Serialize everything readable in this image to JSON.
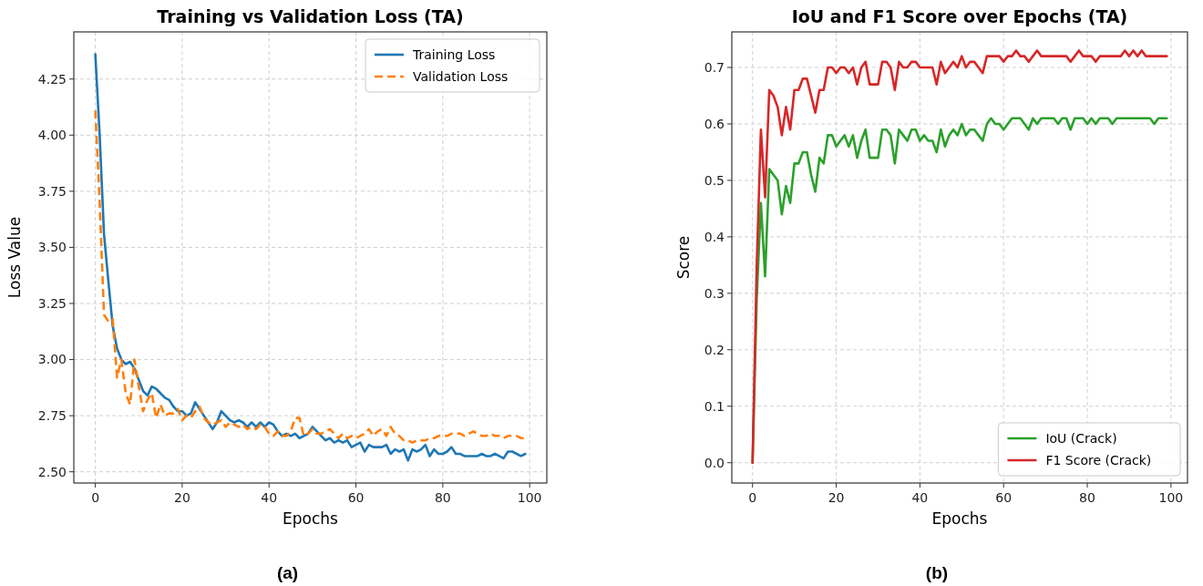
{
  "chart_data": [
    {
      "type": "line",
      "title": "Training vs Validation Loss (TA)",
      "xlabel": "Epochs",
      "ylabel": "Loss Value",
      "x": [
        0,
        1,
        2,
        3,
        4,
        5,
        6,
        7,
        8,
        9,
        10,
        11,
        12,
        13,
        14,
        15,
        16,
        17,
        18,
        19,
        20,
        21,
        22,
        23,
        24,
        25,
        26,
        27,
        28,
        29,
        30,
        31,
        32,
        33,
        34,
        35,
        36,
        37,
        38,
        39,
        40,
        41,
        42,
        43,
        44,
        45,
        46,
        47,
        48,
        49,
        50,
        51,
        52,
        53,
        54,
        55,
        56,
        57,
        58,
        59,
        60,
        61,
        62,
        63,
        64,
        65,
        66,
        67,
        68,
        69,
        70,
        71,
        72,
        73,
        74,
        75,
        76,
        77,
        78,
        79,
        80,
        81,
        82,
        83,
        84,
        85,
        86,
        87,
        88,
        89,
        90,
        91,
        92,
        93,
        94,
        95,
        96,
        97,
        98,
        99
      ],
      "series": [
        {
          "name": "Training Loss",
          "color": "#1f77b4",
          "line_style": "solid",
          "values": [
            4.36,
            4.0,
            3.56,
            3.35,
            3.15,
            3.05,
            3.0,
            2.98,
            2.99,
            2.96,
            2.91,
            2.86,
            2.84,
            2.88,
            2.87,
            2.85,
            2.83,
            2.82,
            2.79,
            2.77,
            2.77,
            2.75,
            2.76,
            2.81,
            2.78,
            2.75,
            2.72,
            2.69,
            2.72,
            2.77,
            2.75,
            2.73,
            2.72,
            2.73,
            2.72,
            2.7,
            2.72,
            2.7,
            2.72,
            2.7,
            2.72,
            2.71,
            2.68,
            2.66,
            2.67,
            2.66,
            2.67,
            2.65,
            2.66,
            2.67,
            2.7,
            2.68,
            2.66,
            2.64,
            2.65,
            2.63,
            2.64,
            2.63,
            2.64,
            2.61,
            2.62,
            2.63,
            2.59,
            2.62,
            2.61,
            2.61,
            2.61,
            2.62,
            2.58,
            2.6,
            2.59,
            2.6,
            2.55,
            2.6,
            2.59,
            2.6,
            2.62,
            2.57,
            2.6,
            2.58,
            2.58,
            2.59,
            2.61,
            2.58,
            2.58,
            2.57,
            2.57,
            2.57,
            2.57,
            2.58,
            2.57,
            2.57,
            2.58,
            2.57,
            2.56,
            2.59,
            2.59,
            2.58,
            2.57,
            2.58
          ]
        },
        {
          "name": "Validation Loss",
          "color": "#ff7f0e",
          "line_style": "dashed",
          "values": [
            4.11,
            3.7,
            3.2,
            3.17,
            3.18,
            2.92,
            3.0,
            2.85,
            2.8,
            3.0,
            2.88,
            2.77,
            2.82,
            2.85,
            2.74,
            2.8,
            2.75,
            2.76,
            2.76,
            2.78,
            2.73,
            2.75,
            2.74,
            2.77,
            2.79,
            2.74,
            2.72,
            2.71,
            2.72,
            2.73,
            2.7,
            2.72,
            2.71,
            2.7,
            2.71,
            2.69,
            2.7,
            2.69,
            2.71,
            2.7,
            2.67,
            2.66,
            2.68,
            2.66,
            2.66,
            2.68,
            2.74,
            2.74,
            2.66,
            2.67,
            2.69,
            2.67,
            2.67,
            2.68,
            2.69,
            2.67,
            2.65,
            2.67,
            2.65,
            2.66,
            2.65,
            2.66,
            2.67,
            2.69,
            2.66,
            2.68,
            2.69,
            2.66,
            2.7,
            2.67,
            2.66,
            2.64,
            2.64,
            2.63,
            2.64,
            2.64,
            2.64,
            2.65,
            2.65,
            2.66,
            2.66,
            2.66,
            2.67,
            2.67,
            2.67,
            2.66,
            2.67,
            2.68,
            2.67,
            2.66,
            2.66,
            2.67,
            2.66,
            2.66,
            2.65,
            2.66,
            2.66,
            2.66,
            2.65,
            2.65
          ]
        }
      ],
      "xlim": [
        -4.95,
        103.95
      ],
      "xticks": [
        0,
        20,
        40,
        60,
        80,
        100
      ],
      "ylim": [
        2.45,
        4.46
      ],
      "yticks": [
        {
          "value": 2.5,
          "label": "2.50"
        },
        {
          "value": 2.75,
          "label": "2.75"
        },
        {
          "value": 3.0,
          "label": "3.00"
        },
        {
          "value": 3.25,
          "label": "3.25"
        },
        {
          "value": 3.5,
          "label": "3.50"
        },
        {
          "value": 3.75,
          "label": "3.75"
        },
        {
          "value": 4.0,
          "label": "4.00"
        },
        {
          "value": 4.25,
          "label": "4.25"
        }
      ],
      "grid": true,
      "legend": "top right",
      "marker": "none",
      "annotations": [
        "(a)"
      ]
    },
    {
      "type": "line",
      "title": "IoU and F1 Score over Epochs (TA)",
      "xlabel": "Epochs",
      "ylabel": "Score",
      "x": [
        0,
        1,
        2,
        3,
        4,
        5,
        6,
        7,
        8,
        9,
        10,
        11,
        12,
        13,
        14,
        15,
        16,
        17,
        18,
        19,
        20,
        21,
        22,
        23,
        24,
        25,
        26,
        27,
        28,
        29,
        30,
        31,
        32,
        33,
        34,
        35,
        36,
        37,
        38,
        39,
        40,
        41,
        42,
        43,
        44,
        45,
        46,
        47,
        48,
        49,
        50,
        51,
        52,
        53,
        54,
        55,
        56,
        57,
        58,
        59,
        60,
        61,
        62,
        63,
        64,
        65,
        66,
        67,
        68,
        69,
        70,
        71,
        72,
        73,
        74,
        75,
        76,
        77,
        78,
        79,
        80,
        81,
        82,
        83,
        84,
        85,
        86,
        87,
        88,
        89,
        90,
        91,
        92,
        93,
        94,
        95,
        96,
        97,
        98,
        99
      ],
      "series": [
        {
          "name": "IoU (Crack)",
          "color": "#2ca02c",
          "line_style": "solid",
          "values": [
            0.0,
            0.29,
            0.46,
            0.33,
            0.52,
            0.51,
            0.5,
            0.44,
            0.49,
            0.46,
            0.53,
            0.53,
            0.55,
            0.55,
            0.51,
            0.48,
            0.54,
            0.53,
            0.58,
            0.58,
            0.56,
            0.57,
            0.58,
            0.56,
            0.58,
            0.54,
            0.57,
            0.59,
            0.54,
            0.54,
            0.54,
            0.59,
            0.59,
            0.58,
            0.53,
            0.59,
            0.58,
            0.57,
            0.59,
            0.59,
            0.57,
            0.58,
            0.57,
            0.57,
            0.55,
            0.59,
            0.56,
            0.58,
            0.59,
            0.58,
            0.6,
            0.58,
            0.59,
            0.59,
            0.58,
            0.57,
            0.6,
            0.61,
            0.6,
            0.6,
            0.59,
            0.6,
            0.61,
            0.61,
            0.61,
            0.6,
            0.59,
            0.61,
            0.6,
            0.61,
            0.61,
            0.61,
            0.61,
            0.6,
            0.61,
            0.61,
            0.59,
            0.61,
            0.61,
            0.61,
            0.6,
            0.61,
            0.6,
            0.61,
            0.61,
            0.61,
            0.6,
            0.61,
            0.61,
            0.61,
            0.61,
            0.61,
            0.61,
            0.61,
            0.61,
            0.61,
            0.6,
            0.61,
            0.61,
            0.61
          ]
        },
        {
          "name": "F1 Score (Crack)",
          "color": "#d62728",
          "line_style": "solid",
          "values": [
            0.0,
            0.35,
            0.59,
            0.47,
            0.66,
            0.65,
            0.63,
            0.58,
            0.63,
            0.59,
            0.66,
            0.66,
            0.68,
            0.68,
            0.65,
            0.62,
            0.66,
            0.66,
            0.7,
            0.7,
            0.69,
            0.7,
            0.7,
            0.69,
            0.7,
            0.67,
            0.7,
            0.71,
            0.67,
            0.67,
            0.67,
            0.71,
            0.71,
            0.7,
            0.66,
            0.71,
            0.7,
            0.7,
            0.71,
            0.71,
            0.7,
            0.7,
            0.7,
            0.7,
            0.67,
            0.71,
            0.69,
            0.7,
            0.71,
            0.7,
            0.72,
            0.7,
            0.71,
            0.71,
            0.7,
            0.69,
            0.72,
            0.72,
            0.72,
            0.72,
            0.71,
            0.72,
            0.72,
            0.73,
            0.72,
            0.72,
            0.71,
            0.72,
            0.73,
            0.72,
            0.72,
            0.72,
            0.72,
            0.72,
            0.72,
            0.72,
            0.71,
            0.72,
            0.73,
            0.72,
            0.72,
            0.72,
            0.71,
            0.72,
            0.72,
            0.72,
            0.72,
            0.72,
            0.72,
            0.73,
            0.72,
            0.73,
            0.72,
            0.73,
            0.72,
            0.72,
            0.72,
            0.72,
            0.72,
            0.72
          ]
        }
      ],
      "xlim": [
        -4.95,
        103.95
      ],
      "xticks": [
        0,
        20,
        40,
        60,
        80,
        100
      ],
      "ylim": [
        -0.036,
        0.763
      ],
      "yticks": [
        {
          "value": 0,
          "label": "0.0"
        },
        {
          "value": 0.1,
          "label": "0.1"
        },
        {
          "value": 0.2,
          "label": "0.2"
        },
        {
          "value": 0.3,
          "label": "0.3"
        },
        {
          "value": 0.4,
          "label": "0.4"
        },
        {
          "value": 0.5,
          "label": "0.5"
        },
        {
          "value": 0.6,
          "label": "0.6"
        },
        {
          "value": 0.7,
          "label": "0.7"
        }
      ],
      "grid": true,
      "legend": "bottom right",
      "marker": "none",
      "annotations": [
        "(b)"
      ]
    }
  ]
}
